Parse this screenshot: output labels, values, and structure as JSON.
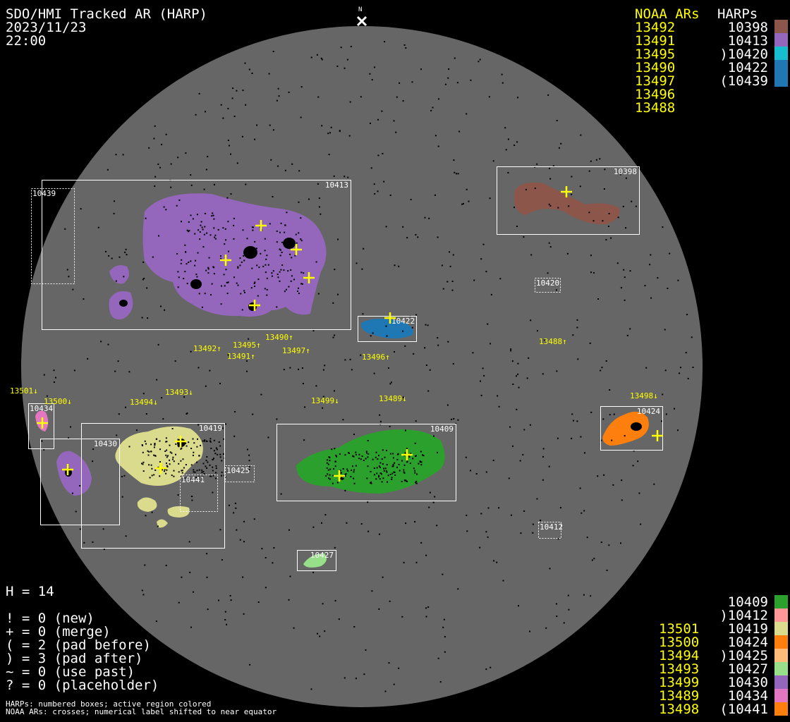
{
  "header": {
    "title": "SDO/HMI Tracked AR (HARP)",
    "date": "2023/11/23",
    "time": "22:00",
    "north_marker": "N"
  },
  "legend_top": {
    "noaa_header": "NOAA ARs",
    "harp_header": "HARPs",
    "noaa": [
      "13492",
      "13491",
      "13495",
      "13490",
      "13497",
      "13496",
      "13488"
    ],
    "harps": [
      {
        "label": "10398",
        "color": "#8c564b"
      },
      {
        "label": "10413",
        "color": "#9467bd"
      },
      {
        "label": ")10420",
        "color": "#17becf"
      },
      {
        "label": "10422",
        "color": "#1f77b4"
      },
      {
        "label": "(10439",
        "color": "#1f77b4"
      }
    ]
  },
  "legend_bottom": {
    "rows": [
      {
        "noaa": "",
        "harp": "10409",
        "color": "#2ca02c"
      },
      {
        "noaa": "",
        "harp": ")10412",
        "color": "#ff9896"
      },
      {
        "noaa": "13501",
        "harp": "10419",
        "color": "#dbdb8d"
      },
      {
        "noaa": "13500",
        "harp": "10424",
        "color": "#ff7f0e"
      },
      {
        "noaa": "13494",
        "harp": ")10425",
        "color": "#ffbb78"
      },
      {
        "noaa": "13493",
        "harp": "10427",
        "color": "#98df8a"
      },
      {
        "noaa": "13499",
        "harp": "10430",
        "color": "#9467bd"
      },
      {
        "noaa": "13489",
        "harp": "10434",
        "color": "#e377c2"
      },
      {
        "noaa": "13498",
        "harp": "(10441",
        "color": "#ff7f0e"
      }
    ]
  },
  "stats": {
    "h": "H = 14",
    "lines": [
      "! = 0 (new)",
      "+ = 0 (merge)",
      "( = 2 (pad before)",
      ") = 3 (pad after)",
      "~ = 0 (use past)",
      "? = 0 (placeholder)"
    ]
  },
  "footnotes": [
    "HARPs: numbered boxes; active region colored",
    "NOAA ARs: crosses; numerical label shifted to near equator"
  ],
  "disk": {
    "background": "#666666",
    "sky": "#000000"
  },
  "harp_boxes": [
    "10413",
    "10439",
    "10398",
    "10420",
    "10422",
    "10434",
    "10430",
    "10419",
    "10425",
    "10441",
    "10409",
    "10424",
    "10412",
    "10427"
  ],
  "noaa_labels": [
    "13492↑",
    "13495↑",
    "13491↑",
    "13490↑",
    "13497↑",
    "13496↑",
    "13488↑",
    "13501↓",
    "13500↓",
    "13494↓",
    "13493↓",
    "13499↓",
    "13489↓",
    "13498↓"
  ]
}
